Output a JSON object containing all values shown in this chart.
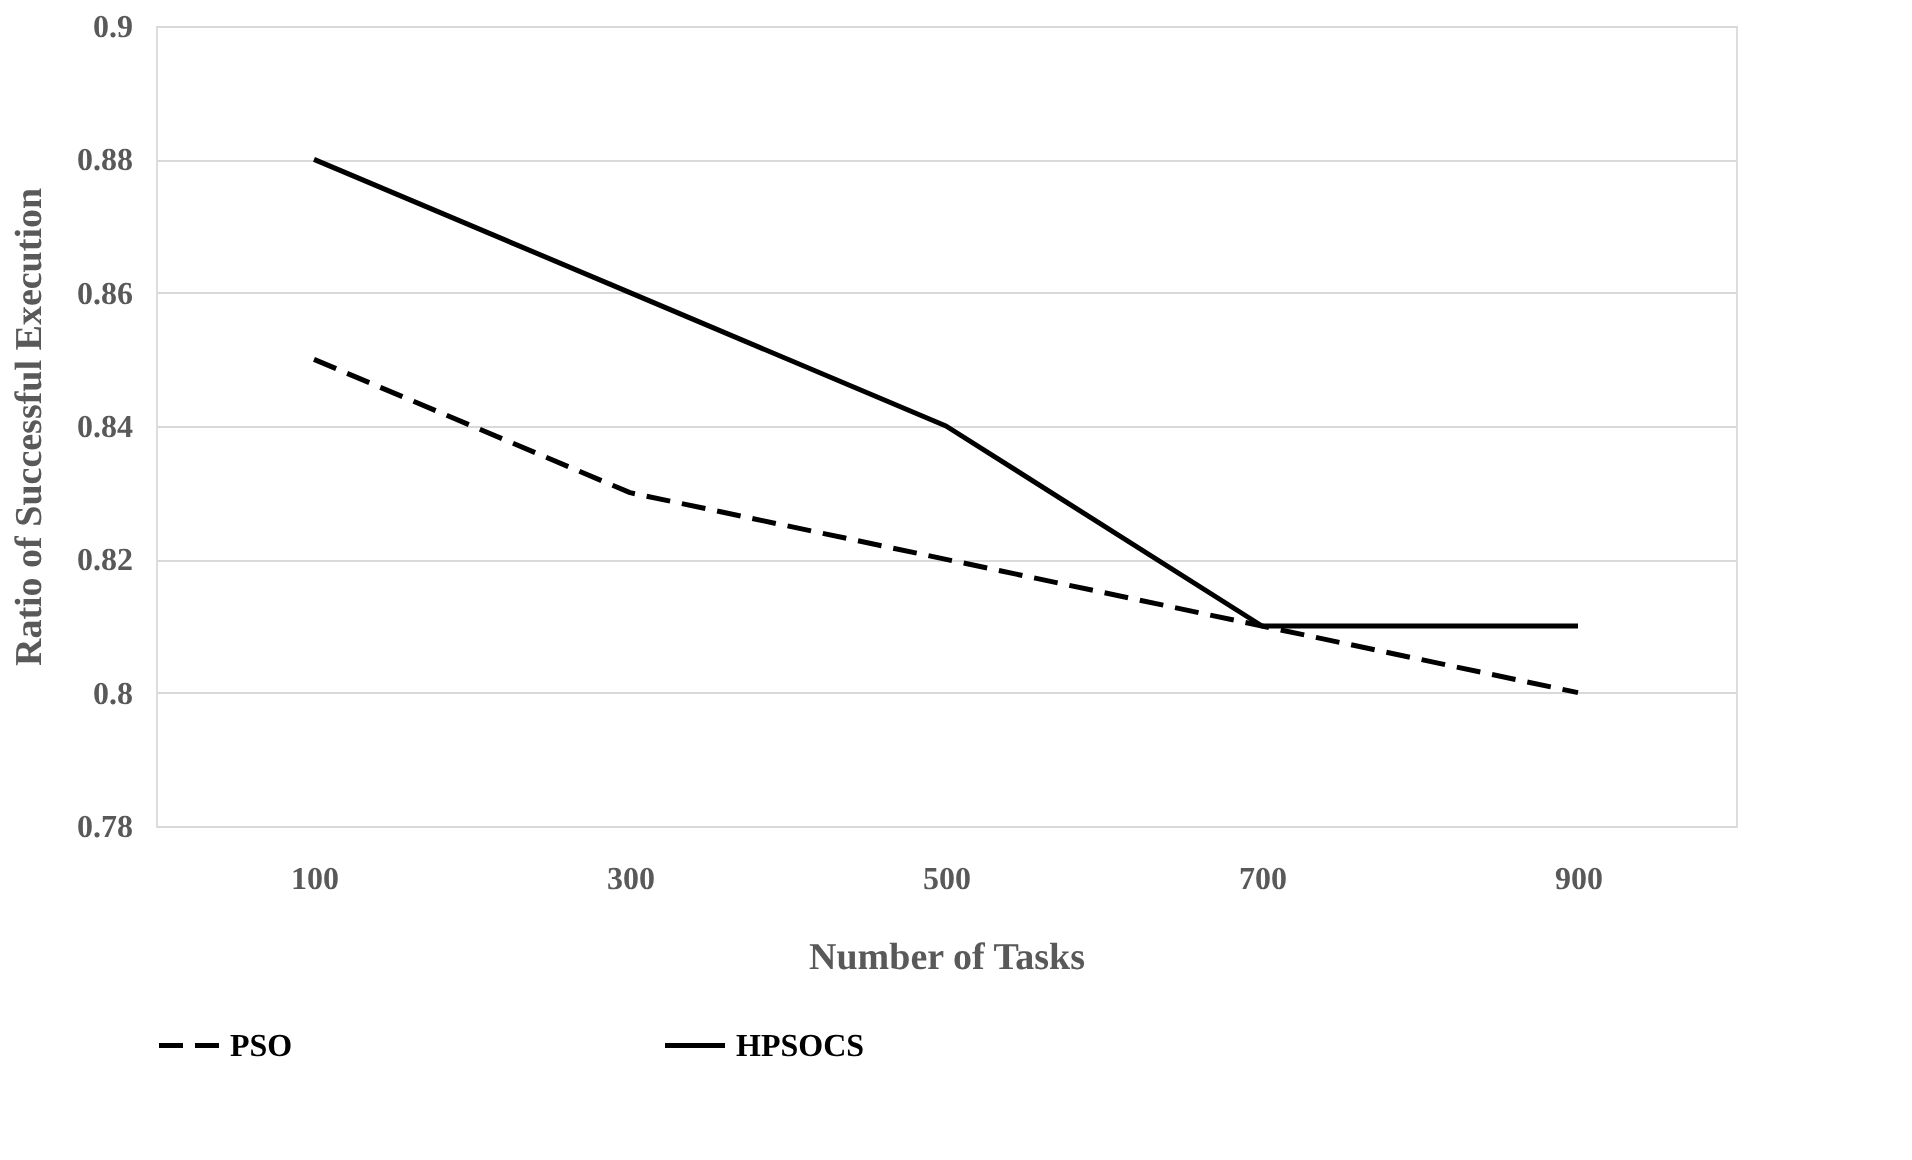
{
  "chart_data": {
    "type": "line",
    "xlabel": "Number of Tasks",
    "ylabel": "Ratio of Successful Execution",
    "categories": [
      "100",
      "300",
      "500",
      "700",
      "900"
    ],
    "series": [
      {
        "name": "PSO",
        "color": "#000000",
        "line_style": "dashed",
        "values": [
          0.85,
          0.83,
          0.82,
          0.81,
          0.8
        ]
      },
      {
        "name": "HPSOCS",
        "color": "#000000",
        "line_style": "solid",
        "values": [
          0.88,
          0.86,
          0.84,
          0.81,
          0.81
        ]
      }
    ],
    "ylim": [
      0.78,
      0.9
    ],
    "yticks": [
      0.78,
      0.8,
      0.82,
      0.84,
      0.86,
      0.88,
      0.9
    ],
    "grid": "y",
    "legend": "bottom",
    "marker": "none"
  }
}
